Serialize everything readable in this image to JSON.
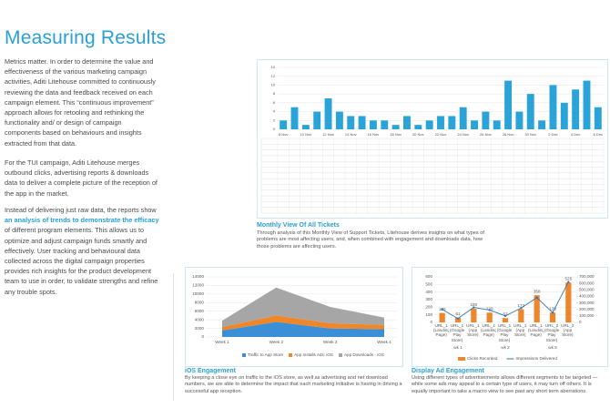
{
  "title": "Measuring Results",
  "paragraphs": [
    "Metrics matter. In order to determine the value and effectiveness of the various marketing campaign activities, Aditi Litehouse committed to continuously reviewing the data and feedback received on each campaign element. This “continuous improvement” approach allows for retooling and rethinking the functionality and/ or design of campaign components based on behaviours and insights extracted from that data.",
    "For the TUI campaign, Aditi Litehouse merges outbound clicks, advertising reports & downloads data to deliver a complete picture of the reception of the app in the market.",
    [
      "Instead of delivering just raw data, the reports show ",
      "an analysis of trends to demonstrate the efficacy",
      " of different program elements. This allows us to optimize and adjust campaign funds smartly and effectively. User tracking and behavioural data collected across the digital campaign properties provides rich insights for the product development team to use in order, to validate strengths and refine any trouble spots."
    ]
  ],
  "chart_data": [
    {
      "type": "bar",
      "title": "Monthly View Of All Tickets",
      "description": "Through analysis of this Monthly View of Support Tickets, Litehouse derives insights on what types of problems are most affecting users, and, when combined with engagement and downloads data, how those problems are affecting users.",
      "categories": [
        "8 Nov",
        null,
        "10 Nov",
        null,
        "12 Nov",
        null,
        "14 Nov",
        null,
        "16 Nov",
        null,
        "18 Nov",
        null,
        "20 Nov",
        null,
        "22 Nov",
        null,
        "24 Nov",
        null,
        "26 Nov",
        null,
        "28 Nov",
        null,
        "30 Nov",
        null,
        "2 Dec",
        null,
        "4 Dec",
        null,
        "6 Dec"
      ],
      "values": [
        2,
        5,
        1,
        4,
        7,
        4,
        3,
        3,
        2,
        2,
        1,
        3,
        1,
        2,
        3,
        3,
        5,
        2,
        4,
        2,
        11,
        4,
        8,
        2,
        10,
        6,
        9,
        11,
        5
      ],
      "color": "#29a3d8",
      "ylim": [
        0,
        14
      ],
      "yticks": [
        0,
        2,
        4,
        6,
        8,
        10,
        12,
        14
      ],
      "grid": true
    },
    {
      "type": "stacked-area",
      "title": "iOS Engagement",
      "description": "By keeping a close eye on traffic to the iOS store, as well as advertising and net download numbers, we are able to determine the impact that each marketing initiative is having in driving a successful app reception.",
      "categories": [
        "Week 1",
        "Week 2",
        "Week 3",
        "Week 4"
      ],
      "series": [
        {
          "name": "Traffic to App Store",
          "color": "#3a8fd6",
          "values": [
            1500,
            3500,
            2000,
            1800
          ]
        },
        {
          "name": "App Installs Ads: iOS",
          "color": "#f0862a",
          "values": [
            800,
            1500,
            1200,
            1000
          ]
        },
        {
          "name": "App Downloads - iOS",
          "color": "#a6a6a6",
          "values": [
            1500,
            6500,
            3800,
            1700
          ]
        }
      ],
      "ylim": [
        0,
        14000
      ],
      "yticks": [
        0,
        2000,
        4000,
        6000,
        8000,
        10000,
        12000,
        14000
      ],
      "grid": true
    },
    {
      "type": "bar-line",
      "title": "Display Ad Engagement",
      "description": "Using different types of advertisements allows different segments to be targeted — while some ads may appeal to a certain type of users, it may turn off others. It is equally important to take a macro view to see past any short term aberrations.",
      "categories": [
        "URL_1 (Landing Page)",
        "URL_1 (Google Play Store)",
        "URL_1 (App Store)",
        "URL_1 (Landing Page)",
        "URL_1 (Google Play Store)",
        "URL_1 (App Store)",
        "URL_1 (Landing Page)",
        "URL_2 (Google Play Store)",
        "URL_2 (App Store)"
      ],
      "groups": [
        "wk 1",
        "wk 2",
        "wk 3"
      ],
      "series": [
        {
          "name": "Clicks Recorded",
          "color": "#f0862a",
          "values": [
            125,
            61,
            180,
            129,
            57,
            172,
            358,
            129,
            525
          ]
        },
        {
          "name": "Impressions Delivered",
          "color": "#2e75b6",
          "axis": "y2",
          "values": [
            200000,
            60000,
            230000,
            190000,
            100000,
            220000,
            380000,
            150000,
            620000
          ]
        }
      ],
      "ylim": [
        0,
        600
      ],
      "yticks": [
        0,
        100,
        200,
        300,
        400,
        500,
        600
      ],
      "y2lim": [
        0,
        700000
      ],
      "y2ticks": [
        0,
        {
          "value": 100000,
          "label": "100,000"
        },
        {
          "value": 200000,
          "label": "200,000"
        },
        {
          "value": 300000,
          "label": "300,000"
        },
        {
          "value": 400000,
          "label": "400,000"
        },
        {
          "value": 500000,
          "label": "500,000"
        },
        {
          "value": 600000,
          "label": "600,000"
        },
        {
          "value": 700000,
          "label": "700,000"
        }
      ],
      "grid": true
    }
  ]
}
